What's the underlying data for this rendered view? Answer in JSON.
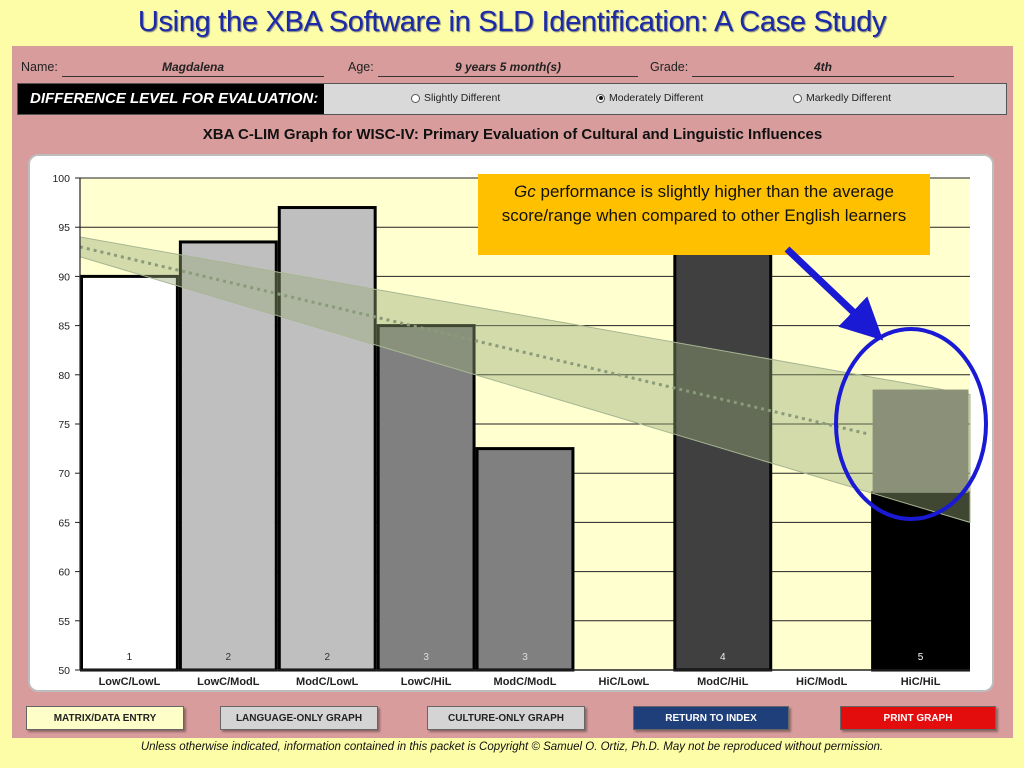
{
  "slide": {
    "title": "Using the XBA Software in SLD Identification: A Case Study",
    "footer": "Unless otherwise indicated, information contained in this packet is Copyright © Samuel O. Ortiz, Ph.D.  May not be reproduced without permission."
  },
  "form": {
    "name_label": "Name:",
    "name_value": "Magdalena",
    "age_label": "Age:",
    "age_value": "9 years 5 month(s)",
    "grade_label": "Grade:",
    "grade_value": "4th"
  },
  "difference": {
    "label": "DIFFERENCE LEVEL FOR EVALUATION:",
    "options": [
      {
        "label": "Slightly Different",
        "selected": false
      },
      {
        "label": "Moderately Different",
        "selected": true
      },
      {
        "label": "Markedly Different",
        "selected": false
      }
    ]
  },
  "callout": {
    "italic_part": "Gc",
    "text": " performance is slightly higher than the average score/range when compared to other English learners"
  },
  "buttons": {
    "matrix": "MATRIX/DATA ENTRY",
    "language": "LANGUAGE-ONLY GRAPH",
    "culture": "CULTURE-ONLY GRAPH",
    "return": "RETURN TO INDEX",
    "print": "PRINT GRAPH"
  },
  "chart_data": {
    "type": "bar",
    "title": "XBA C-LIM Graph for WISC-IV: Primary Evaluation of Cultural and Linguistic Influences",
    "categories": [
      "LowC/LowL",
      "LowC/ModL",
      "ModC/LowL",
      "LowC/HiL",
      "ModC/ModL",
      "HiC/LowL",
      "ModC/HiL",
      "HiC/ModL",
      "HiC/HiL"
    ],
    "values": [
      90,
      93.5,
      97,
      85,
      72.5,
      null,
      93,
      null,
      68
    ],
    "bar_labels": [
      "1",
      "2",
      "2",
      "3",
      "3",
      "",
      "4",
      "",
      "5"
    ],
    "bar_colors": [
      "#ffffff",
      "#bfbfbf",
      "#bfbfbf",
      "#808080",
      "#808080",
      null,
      "#404040",
      null,
      "#000000"
    ],
    "label_colors": [
      "#222222",
      "#333333",
      "#333333",
      "#dddddd",
      "#dddddd",
      "",
      "#eeeeee",
      "",
      "#ffffff"
    ],
    "ylim": [
      50,
      100
    ],
    "yticks": [
      50,
      55,
      60,
      65,
      70,
      75,
      80,
      85,
      90,
      95,
      100
    ],
    "grid": true,
    "expected_band": {
      "upper_start": 94,
      "upper_end": 78,
      "lower_start": 92,
      "lower_end": 65
    },
    "expected_trend": {
      "start": 93,
      "end": 74
    },
    "highlight_category": "HiC/HiL",
    "highlight_value": 78.5
  }
}
